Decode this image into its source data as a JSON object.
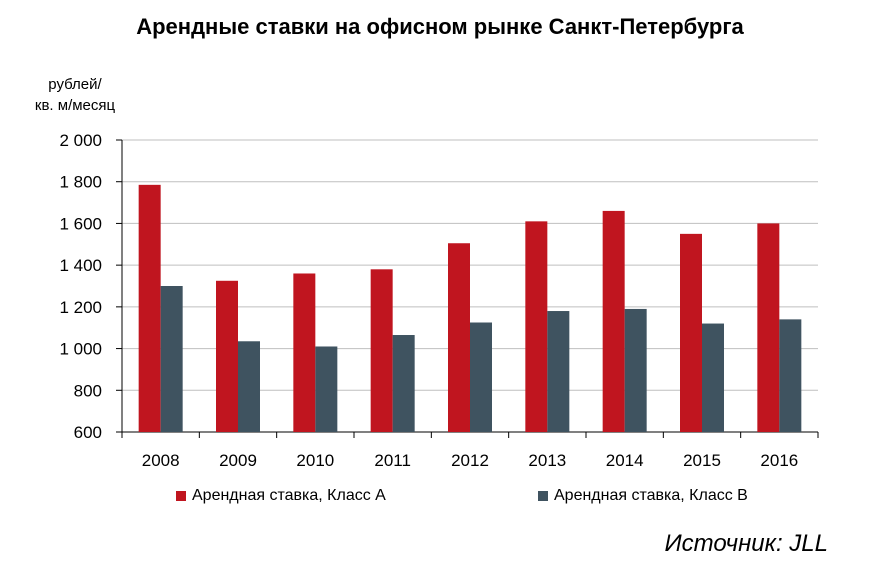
{
  "chart_data": {
    "type": "bar",
    "title": "Арендные ставки на офисном рынке Санкт-Петербурга",
    "ylabel": [
      "рублей/",
      "кв. м/месяц"
    ],
    "categories": [
      "2008",
      "2009",
      "2010",
      "2011",
      "2012",
      "2013",
      "2014",
      "2015",
      "2016"
    ],
    "series": [
      {
        "name": "Арендная ставка, Класс А",
        "color": "#c0151f",
        "values": [
          1785,
          1325,
          1360,
          1380,
          1505,
          1610,
          1660,
          1550,
          1600
        ]
      },
      {
        "name": "Арендная ставка, Класс В",
        "color": "#3f5360",
        "values": [
          1300,
          1035,
          1010,
          1065,
          1125,
          1180,
          1190,
          1120,
          1140
        ]
      }
    ],
    "ylim": [
      600,
      2000
    ],
    "yticks": [
      600,
      800,
      1000,
      1200,
      1400,
      1600,
      1800,
      2000
    ],
    "ytick_labels": [
      "600",
      "800",
      "1 000",
      "1 200",
      "1 400",
      "1 600",
      "1 800",
      "2 000"
    ],
    "grid": true,
    "legend_position": "bottom"
  },
  "source": "Источник: JLL"
}
